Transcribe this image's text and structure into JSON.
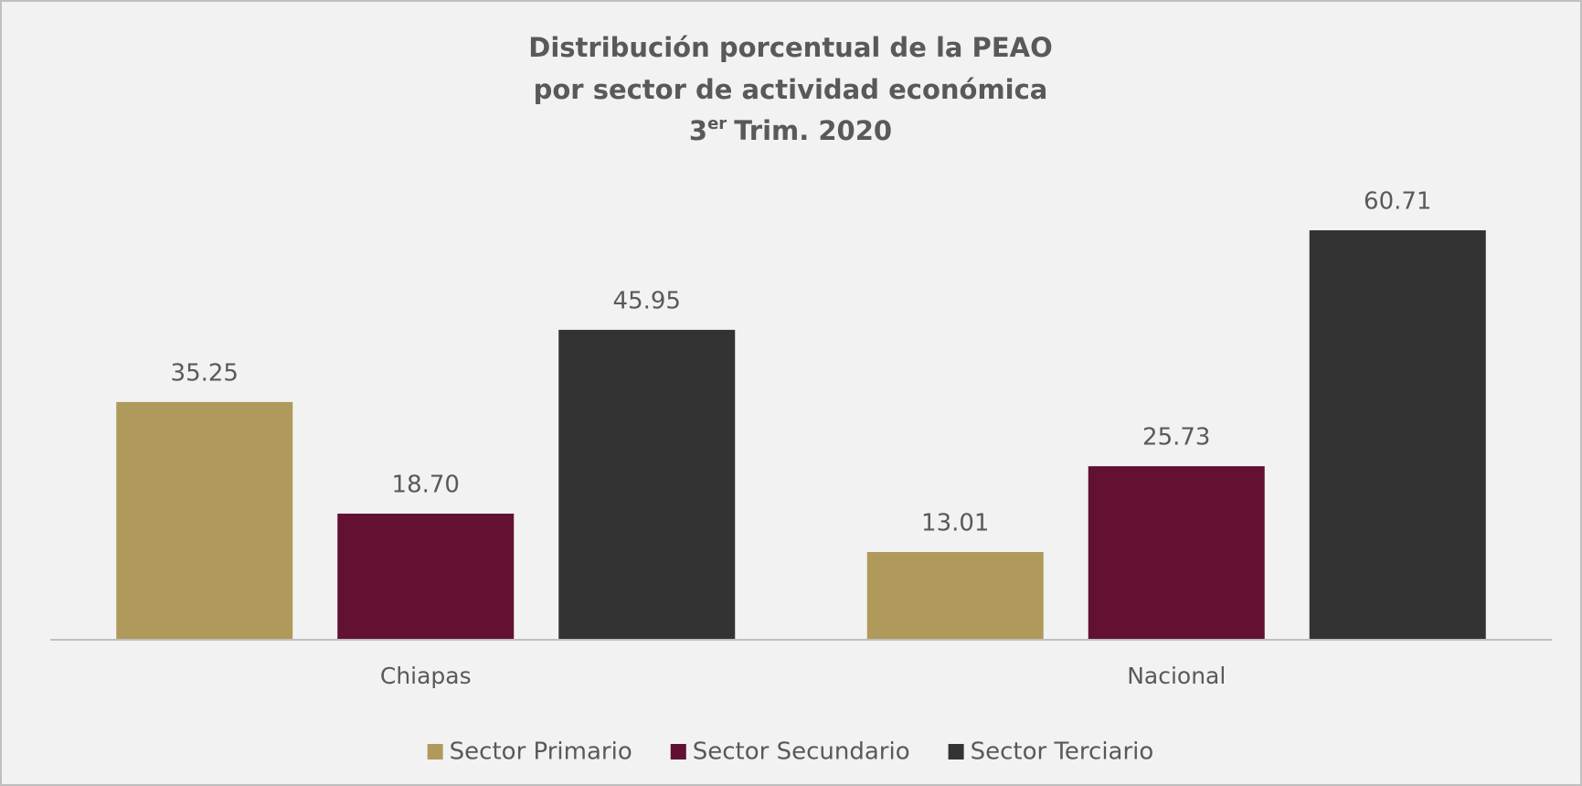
{
  "chart_data": {
    "type": "bar",
    "title": [
      "Distribución porcentual de la PEAO",
      "por sector de actividad económica",
      [
        "3",
        "er",
        "Trim. 2020"
      ]
    ],
    "categories": [
      "Chiapas",
      "Nacional"
    ],
    "series": [
      {
        "name": "Sector Primario",
        "color": "#b09a5b",
        "values": [
          35.25,
          13.01
        ],
        "value_labels": [
          "35.25",
          "13.01"
        ]
      },
      {
        "name": "Sector Secundario",
        "color": "#621132",
        "values": [
          18.7,
          25.73
        ],
        "value_labels": [
          "18.70",
          "25.73"
        ]
      },
      {
        "name": "Sector Terciario",
        "color": "#333333",
        "values": [
          45.95,
          60.71
        ],
        "value_labels": [
          "45.95",
          "60.71"
        ]
      }
    ],
    "legend": "bottom"
  }
}
